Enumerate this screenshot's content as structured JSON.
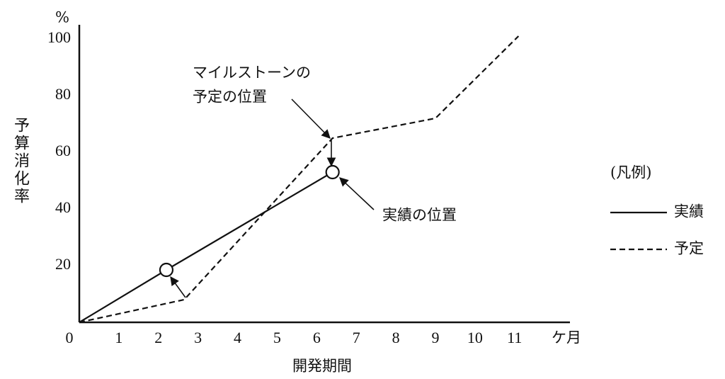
{
  "chart_data": {
    "type": "line",
    "y_label": "予算消化率",
    "y_unit": "%",
    "x_label": "開発期間",
    "x_unit": "ケ月",
    "xlim": [
      0,
      12.4
    ],
    "ylim": [
      0,
      105
    ],
    "xticks": [
      0,
      1,
      2,
      3,
      4,
      5,
      6,
      7,
      8,
      9,
      10,
      11
    ],
    "yticks": [
      20,
      40,
      60,
      80,
      100
    ],
    "legend_title": "(凡例)",
    "series": [
      {
        "name": "実績",
        "color": "#111111",
        "dash": "solid",
        "marker": "circle",
        "x": [
          0,
          2.2,
          6.4
        ],
        "values": [
          0,
          18.5,
          53
        ]
      },
      {
        "name": "予定",
        "color": "#111111",
        "dash": "dashed",
        "x": [
          0,
          2.65,
          6.4,
          9,
          11.1
        ],
        "values": [
          0,
          8,
          65,
          72,
          101
        ]
      }
    ],
    "annotations": [
      {
        "lines": [
          "マイルストーンの",
          "予定の位置"
        ]
      },
      {
        "lines": [
          "実績の位置"
        ]
      }
    ]
  }
}
